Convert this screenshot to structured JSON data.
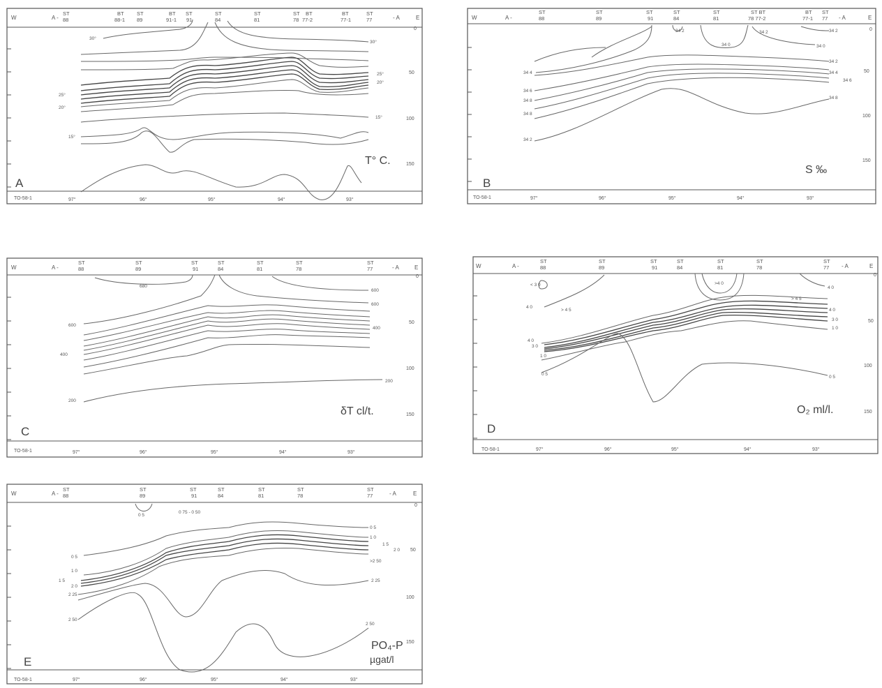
{
  "chart_data": [
    {
      "type": "contour-section",
      "panel_letter": "A",
      "variable_label": "T° C.",
      "section_id": "TO-58-1",
      "west_label": "W",
      "east_label": "E",
      "section_start": "A -",
      "section_end": "- A",
      "stations": [
        {
          "top": "ST",
          "bottom": "88",
          "lon": 96.9
        },
        {
          "top": "BT",
          "bottom": "88-1",
          "lon": 96.3
        },
        {
          "top": "ST",
          "bottom": "89",
          "lon": 96.05
        },
        {
          "top": "BT",
          "bottom": "91-1",
          "lon": 95.6
        },
        {
          "top": "ST",
          "bottom": "91",
          "lon": 95.4
        },
        {
          "top": "ST",
          "bottom": "84",
          "lon": 95.0
        },
        {
          "top": "ST",
          "bottom": "81",
          "lon": 94.45
        },
        {
          "top": "ST",
          "bottom": "78",
          "lon": 93.95
        },
        {
          "top": "BT",
          "bottom": "77-2",
          "lon": 93.75
        },
        {
          "top": "BT",
          "bottom": "77-1",
          "lon": 93.25
        },
        {
          "top": "ST",
          "bottom": "77",
          "lon": 92.95
        }
      ],
      "longitude_ticks": [
        "97°",
        "96°",
        "95°",
        "94°",
        "93°"
      ],
      "depth_ticks": [
        "0",
        "50",
        "100",
        "150"
      ],
      "contour_labels": [
        "30°",
        "30°",
        "25°",
        "20°",
        "25°",
        "20°",
        "15°",
        "15°"
      ]
    },
    {
      "type": "contour-section",
      "panel_letter": "B",
      "variable_label": "S ‰",
      "section_id": "TO-58-1",
      "west_label": "W",
      "east_label": "E",
      "section_start": "A -",
      "section_end": "- A",
      "stations": [
        {
          "top": "ST",
          "bottom": "88"
        },
        {
          "top": "ST",
          "bottom": "89"
        },
        {
          "top": "ST",
          "bottom": "91"
        },
        {
          "top": "ST",
          "bottom": "84"
        },
        {
          "top": "ST",
          "bottom": "81"
        },
        {
          "top": "ST BT",
          "bottom": "78 77-2"
        },
        {
          "top": "BT",
          "bottom": "77-1"
        },
        {
          "top": "ST",
          "bottom": "77"
        }
      ],
      "longitude_ticks": [
        "97°",
        "96°",
        "95°",
        "94°",
        "93°"
      ],
      "depth_ticks": [
        "0",
        "50",
        "100",
        "150"
      ],
      "contour_labels": [
        "34 2",
        "34 0",
        "34 2",
        "34 2",
        "34 0",
        "34 2",
        "34 4",
        "34 6",
        "34 8",
        "34 4",
        "34 6",
        "34 8",
        "34 8",
        "34 2"
      ]
    },
    {
      "type": "contour-section",
      "panel_letter": "C",
      "variable_label": "δT cl/t.",
      "section_id": "TO-58-1",
      "west_label": "W",
      "east_label": "E",
      "section_start": "A -",
      "section_end": "- A",
      "stations": [
        {
          "top": "ST",
          "bottom": "88"
        },
        {
          "top": "ST",
          "bottom": "89"
        },
        {
          "top": "ST",
          "bottom": "91"
        },
        {
          "top": "ST",
          "bottom": "84"
        },
        {
          "top": "ST",
          "bottom": "81"
        },
        {
          "top": "ST",
          "bottom": "78"
        },
        {
          "top": "ST",
          "bottom": "77"
        }
      ],
      "longitude_ticks": [
        "97°",
        "96°",
        "95°",
        "94°",
        "93°"
      ],
      "depth_ticks": [
        "0",
        "50",
        "100",
        "150"
      ],
      "contour_labels": [
        "680",
        "600",
        "600",
        "400",
        "400",
        "200",
        "200",
        "600"
      ]
    },
    {
      "type": "contour-section",
      "panel_letter": "D",
      "variable_label": "O₂ ml/l.",
      "section_id": "TO-58-1",
      "west_label": "W",
      "east_label": "E",
      "section_start": "A -",
      "section_end": "- A",
      "stations": [
        {
          "top": "ST",
          "bottom": "88"
        },
        {
          "top": "ST",
          "bottom": "89"
        },
        {
          "top": "ST",
          "bottom": "91"
        },
        {
          "top": "ST",
          "bottom": "84"
        },
        {
          "top": "ST",
          "bottom": "81"
        },
        {
          "top": "ST",
          "bottom": "78"
        },
        {
          "top": "ST",
          "bottom": "77"
        }
      ],
      "longitude_ticks": [
        "97°",
        "96°",
        "95°",
        "94°",
        "93°"
      ],
      "depth_ticks": [
        "0",
        "50",
        "100",
        "150"
      ],
      "contour_labels": [
        "< 3 0",
        "4 0",
        "> 4 5",
        "4 0",
        "3 0",
        "1 0",
        "0 5",
        ">4 0",
        "> 4 5",
        "4 0",
        "4 0",
        "3 0",
        "1 0",
        "0 5"
      ]
    },
    {
      "type": "contour-section",
      "panel_letter": "E",
      "variable_label": "PO₄-P",
      "variable_unit": "µgat/l",
      "section_id": "TO-58-1",
      "west_label": "W",
      "east_label": "E",
      "section_start": "A -",
      "section_end": "- A",
      "stations": [
        {
          "top": "ST",
          "bottom": "88"
        },
        {
          "top": "ST",
          "bottom": "89"
        },
        {
          "top": "ST",
          "bottom": "91"
        },
        {
          "top": "ST",
          "bottom": "84"
        },
        {
          "top": "ST",
          "bottom": "81"
        },
        {
          "top": "ST",
          "bottom": "78"
        },
        {
          "top": "ST",
          "bottom": "77"
        }
      ],
      "longitude_ticks": [
        "97°",
        "96°",
        "95°",
        "94°",
        "93°"
      ],
      "depth_ticks": [
        "0",
        "50",
        "100",
        "150"
      ],
      "contour_labels": [
        "0 5",
        "0 75 - 0 50",
        "0 5",
        "1 0",
        "1 5",
        "2 0",
        "1 5",
        "2 0",
        "2 25",
        "2 50",
        ">2 50",
        "2 25",
        "2 50",
        "0 5",
        "1 0"
      ]
    }
  ]
}
